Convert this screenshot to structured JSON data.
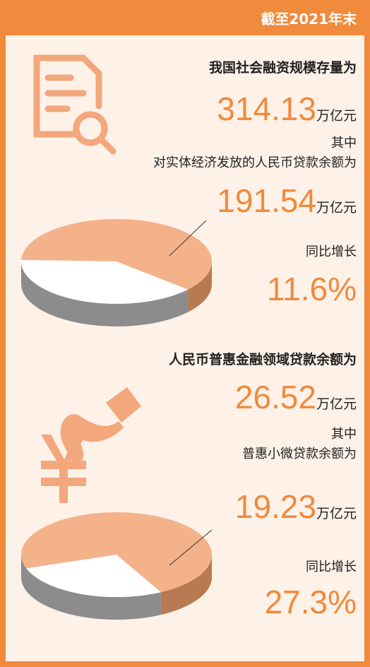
{
  "header": {
    "title": "截至2021年末"
  },
  "sections": [
    {
      "heading": "我国社会融资规模存量为",
      "total": {
        "value": 314.13,
        "unit": "万亿元"
      },
      "sub_label": [
        "其中",
        "对实体经济发放的人民币贷款余额为"
      ],
      "part": {
        "value": 191.54,
        "unit": "万亿元"
      },
      "growth_label": "同比增长",
      "growth": {
        "value": 11.6,
        "unit": "%"
      }
    },
    {
      "heading": "人民币普惠金融领域贷款余额为",
      "total": {
        "value": 26.52,
        "unit": "万亿元"
      },
      "sub_label": [
        "其中",
        "普惠小微贷款余额为"
      ],
      "part": {
        "value": 19.23,
        "unit": "万亿元"
      },
      "growth_label": "同比增长",
      "growth": {
        "value": 27.3,
        "unit": "%"
      }
    }
  ]
}
